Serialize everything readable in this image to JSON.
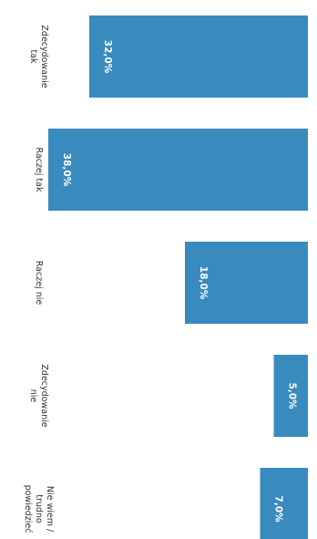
{
  "chart_data": {
    "type": "bar",
    "orientation": "horizontal",
    "categories": [
      [
        "Zdecydowanie",
        "tak"
      ],
      [
        "Raczej tak"
      ],
      [
        "Raczej nie"
      ],
      [
        "Zdecydowanie",
        "nie"
      ],
      [
        "Nie wiem /",
        "trudno",
        "powiedzieć"
      ]
    ],
    "values": [
      32.0,
      38.0,
      18.0,
      5.0,
      7.0
    ],
    "value_labels": [
      "32,0%",
      "38,0%",
      "18,0%",
      "5,0%",
      "7,0%"
    ],
    "unit": "%",
    "xlim": [
      0,
      40
    ],
    "grid": false,
    "bar_color": "#3a8bbd"
  }
}
